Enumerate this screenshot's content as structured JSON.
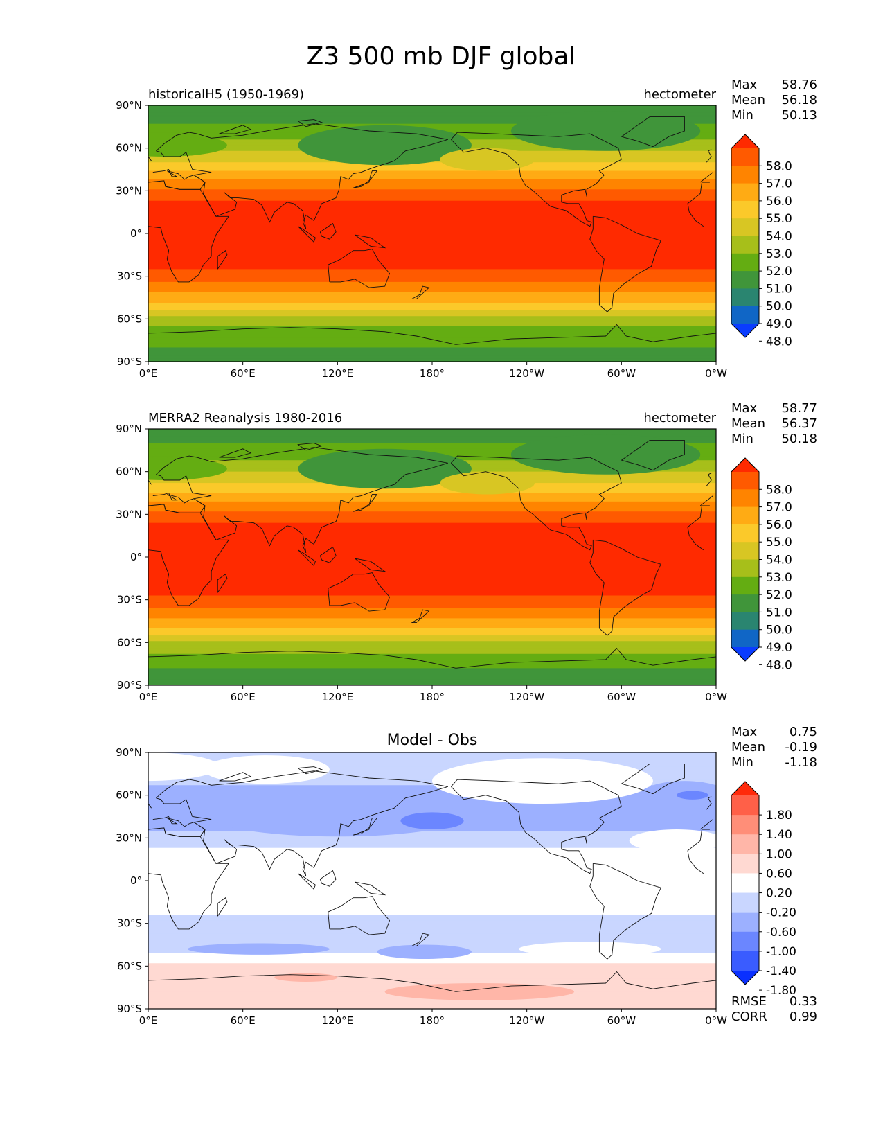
{
  "figure": {
    "title": "Z3 500 mb DJF global"
  },
  "chart_data": [
    {
      "type": "heatmap",
      "panel": "test",
      "title_left": "historicalH5 (1950-1969)",
      "units": "hectometer",
      "stats": {
        "max_label": "Max",
        "mean_label": "Mean",
        "min_label": "Min",
        "max": "58.76",
        "mean": "56.18",
        "min": "50.13"
      },
      "xticks": [
        "0°E",
        "60°E",
        "120°E",
        "180°",
        "120°W",
        "60°W",
        "0°W"
      ],
      "yticks": [
        "90°N",
        "60°N",
        "30°N",
        "0°",
        "30°S",
        "60°S",
        "90°S"
      ],
      "xlim": [
        0,
        360
      ],
      "ylim": [
        -90,
        90
      ],
      "colorbar_levels": [
        "58.0",
        "57.0",
        "56.0",
        "55.0",
        "54.0",
        "53.0",
        "52.0",
        "51.0",
        "50.0",
        "49.0",
        "48.0"
      ],
      "colorbar_colors": [
        "#ff2a00",
        "#ff5a00",
        "#ff8400",
        "#ffab14",
        "#fbc92a",
        "#d8c623",
        "#a7bf1a",
        "#64ad12",
        "#40953a",
        "#2a8570",
        "#1066c6",
        "#0a3cff"
      ],
      "zonal_profile": {
        "lat": [
          90,
          80,
          70,
          60,
          50,
          40,
          30,
          20,
          0,
          -20,
          -30,
          -40,
          -50,
          -60,
          -70,
          -80,
          -90
        ],
        "value": [
          50.4,
          50.8,
          51.5,
          52.8,
          54.0,
          55.6,
          57.2,
          58.4,
          58.7,
          58.4,
          57.6,
          56.2,
          54.8,
          52.6,
          51.5,
          51.0,
          50.8
        ]
      }
    },
    {
      "type": "heatmap",
      "panel": "reference",
      "title_left": "MERRA2 Reanalysis 1980-2016",
      "units": "hectometer",
      "stats": {
        "max_label": "Max",
        "mean_label": "Mean",
        "min_label": "Min",
        "max": "58.77",
        "mean": "56.37",
        "min": "50.18"
      },
      "xticks": [
        "0°E",
        "60°E",
        "120°E",
        "180°",
        "120°W",
        "60°W",
        "0°W"
      ],
      "yticks": [
        "90°N",
        "60°N",
        "30°N",
        "0°",
        "30°S",
        "60°S",
        "90°S"
      ],
      "xlim": [
        0,
        360
      ],
      "ylim": [
        -90,
        90
      ],
      "colorbar_levels": [
        "58.0",
        "57.0",
        "56.0",
        "55.0",
        "54.0",
        "53.0",
        "52.0",
        "51.0",
        "50.0",
        "49.0",
        "48.0"
      ],
      "colorbar_colors": [
        "#ff2a00",
        "#ff5a00",
        "#ff8400",
        "#ffab14",
        "#fbc92a",
        "#d8c623",
        "#a7bf1a",
        "#64ad12",
        "#40953a",
        "#2a8570",
        "#1066c6",
        "#0a3cff"
      ],
      "zonal_profile": {
        "lat": [
          90,
          80,
          70,
          60,
          50,
          40,
          30,
          20,
          0,
          -20,
          -30,
          -40,
          -50,
          -60,
          -70,
          -80,
          -90
        ],
        "value": [
          50.6,
          51.0,
          51.8,
          53.0,
          54.2,
          55.8,
          57.3,
          58.5,
          58.7,
          58.5,
          57.8,
          56.4,
          55.0,
          52.8,
          51.8,
          50.8,
          50.4
        ]
      }
    },
    {
      "type": "heatmap",
      "panel": "difference",
      "title_center": "Model - Obs",
      "stats": {
        "max_label": "Max",
        "mean_label": "Mean",
        "min_label": "Min",
        "max": "0.75",
        "mean": "-0.19",
        "min": "-1.18"
      },
      "metrics": {
        "rmse_label": "RMSE",
        "corr_label": "CORR",
        "rmse": "0.33",
        "corr": "0.99"
      },
      "xticks": [
        "0°E",
        "60°E",
        "120°E",
        "180°",
        "120°W",
        "60°W",
        "0°W"
      ],
      "yticks": [
        "90°N",
        "60°N",
        "30°N",
        "0°",
        "30°S",
        "60°S",
        "90°S"
      ],
      "xlim": [
        0,
        360
      ],
      "ylim": [
        -90,
        90
      ],
      "colorbar_levels": [
        "1.80",
        "1.40",
        "1.00",
        "0.60",
        "0.20",
        "-0.20",
        "-0.60",
        "-1.00",
        "-1.40",
        "-1.80"
      ],
      "colorbar_colors": [
        "#ff2a0a",
        "#ff6048",
        "#ff8e78",
        "#ffb6a8",
        "#ffd9d2",
        "#ffffff",
        "#c9d6ff",
        "#9cb0ff",
        "#6b86ff",
        "#3a5cff",
        "#0a30ff"
      ],
      "zonal_profile": {
        "lat": [
          90,
          75,
          60,
          45,
          30,
          20,
          0,
          -20,
          -35,
          -45,
          -55,
          -65,
          -75,
          -90
        ],
        "value": [
          -0.3,
          -0.5,
          -0.7,
          -0.8,
          -0.5,
          -0.1,
          0.0,
          -0.1,
          -0.5,
          -0.6,
          0.1,
          0.4,
          0.5,
          0.3
        ]
      }
    }
  ]
}
